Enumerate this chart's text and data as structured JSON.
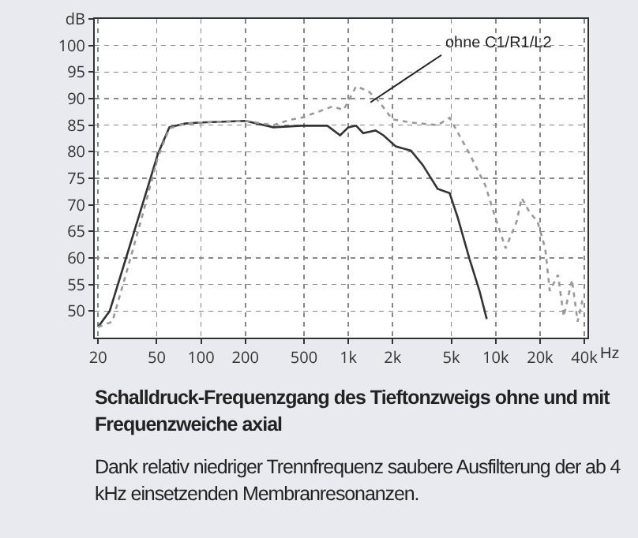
{
  "chart_data": {
    "type": "line",
    "title": "Schalldruck-Frequenzgang des Tieftonzweigs ohne und mit Frequenzweiche axial",
    "annotations": [
      "Dank relativ niedriger Trennfrequenz saubere Ausfilterung der ab 4 kHz einsetzenden Membranresonanzen."
    ],
    "log": "x",
    "grid": true,
    "legend": false,
    "marker": "none",
    "xlim": [
      19,
      42000
    ],
    "xticks": [
      20,
      50,
      100,
      200,
      500,
      {
        "value": 1000,
        "label": "1k"
      },
      {
        "value": 2000,
        "label": "2k"
      },
      {
        "value": 5000,
        "label": "5k"
      },
      {
        "value": 10000,
        "label": "10k"
      },
      {
        "value": 20000,
        "label": "20k"
      },
      {
        "value": 40000,
        "label": "40k"
      }
    ],
    "xlabel": "Hz",
    "ylim": [
      45,
      105
    ],
    "yticks": [
      50,
      55,
      60,
      65,
      70,
      75,
      80,
      85,
      90,
      95,
      100,
      {
        "value": 105,
        "label": "dB"
      }
    ],
    "series": [
      {
        "color": "#333333",
        "line_style": "solid",
        "x": [
          20,
          24,
          31,
          40,
          51,
          61,
          78,
          100,
          200,
          310,
          480,
          720,
          880,
          1000,
          1130,
          1260,
          1530,
          1730,
          2100,
          2660,
          3200,
          4040,
          4870,
          5500,
          6650,
          7770,
          8700
        ],
        "values": [
          47,
          50,
          60,
          70,
          79.6,
          84.6,
          85.3,
          85.5,
          85.8,
          84.6,
          84.9,
          84.9,
          83.1,
          84.6,
          84.9,
          83.5,
          84,
          83.1,
          81,
          80.2,
          77.5,
          73,
          72.2,
          67.8,
          59.8,
          53.8,
          48.5
        ]
      },
      {
        "name": "ohne C1/R1/L2",
        "color": "#999999",
        "line_style": "dotted",
        "x": [
          20,
          25,
          31,
          40,
          51,
          61,
          78,
          100,
          200,
          310,
          400,
          480,
          780,
          930,
          1130,
          1370,
          1620,
          1990,
          2660,
          4040,
          4870,
          6650,
          8500,
          9900,
          11700,
          13900,
          15000,
          17000,
          19200,
          21700,
          23300,
          26500,
          29000,
          33000,
          36000,
          38800
        ],
        "values": [
          47,
          48,
          57,
          68,
          79,
          84.4,
          85.3,
          85.5,
          85.8,
          85,
          86,
          86.4,
          88.5,
          87.9,
          92.3,
          91.4,
          89.4,
          86.1,
          85.5,
          85,
          86.4,
          79.6,
          73.7,
          67.8,
          61.8,
          66.9,
          71.3,
          68.6,
          66.9,
          61.8,
          53.8,
          56.8,
          49,
          55.9,
          48,
          52
        ]
      }
    ]
  }
}
